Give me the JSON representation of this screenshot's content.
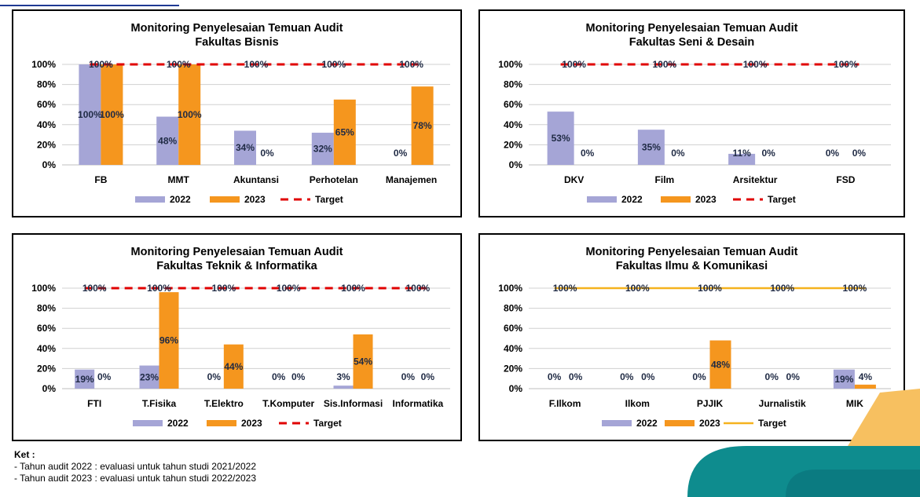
{
  "colors": {
    "s2022": "#a5a5d6",
    "s2023": "#f5961e",
    "target_red": "#e00000",
    "target_yellow": "#f5b21e",
    "grid": "#d0d0d0"
  },
  "charts": [
    {
      "id": "c1",
      "title_line1": "Monitoring Penyelesaian Temuan Audit",
      "title_line2": "Fakultas Bisnis",
      "chart_data": {
        "type": "bar",
        "categories": [
          "FB",
          "MMT",
          "Akuntansi",
          "Perhotelan",
          "Manajemen"
        ],
        "series": [
          {
            "name": "2022",
            "values": [
              100,
              48,
              34,
              32,
              0
            ],
            "labels": [
              "100%",
              "48%",
              "34%",
              "32%",
              "0%"
            ]
          },
          {
            "name": "2023",
            "values": [
              100,
              100,
              0,
              65,
              78
            ],
            "labels": [
              "100%",
              "100%",
              "0%",
              "65%",
              "78%"
            ]
          }
        ],
        "target": {
          "name": "Target",
          "value": 100,
          "labels": [
            "100%",
            "100%",
            "100%",
            "100%",
            "100%"
          ],
          "style": "dashed-red"
        },
        "yticks": [
          "0%",
          "20%",
          "40%",
          "60%",
          "80%",
          "100%"
        ],
        "ylim": [
          0,
          100
        ],
        "legend": "bottom"
      }
    },
    {
      "id": "c2",
      "title_line1": "Monitoring  Penyelesaian Temuan Audit",
      "title_line2": "Fakultas Seni & Desain",
      "chart_data": {
        "type": "bar",
        "categories": [
          "DKV",
          "Film",
          "Arsitektur",
          "FSD"
        ],
        "series": [
          {
            "name": "2022",
            "values": [
              53,
              35,
              11,
              0
            ],
            "labels": [
              "53%",
              "35%",
              "11%",
              "0%"
            ]
          },
          {
            "name": "2023",
            "values": [
              0,
              0,
              0,
              0
            ],
            "labels": [
              "0%",
              "0%",
              "0%",
              "0%"
            ]
          }
        ],
        "target": {
          "name": "Target",
          "value": 100,
          "labels": [
            "100%",
            "100%",
            "100%",
            "100%"
          ],
          "style": "dashed-red"
        },
        "yticks": [
          "0%",
          "20%",
          "40%",
          "60%",
          "80%",
          "100%"
        ],
        "ylim": [
          0,
          100
        ],
        "legend": "bottom"
      }
    },
    {
      "id": "c3",
      "title_line1": "Monitoring Penyelesaian Temuan Audit",
      "title_line2": "Fakultas Teknik & Informatika",
      "chart_data": {
        "type": "bar",
        "categories": [
          "FTI",
          "T.Fisika",
          "T.Elektro",
          "T.Komputer",
          "Sis.Informasi",
          "Informatika"
        ],
        "series": [
          {
            "name": "2022",
            "values": [
              19,
              23,
              0,
              0,
              3,
              0
            ],
            "labels": [
              "19%",
              "23%",
              "0%",
              "0%",
              "3%",
              "0%"
            ]
          },
          {
            "name": "2023",
            "values": [
              0,
              96,
              44,
              0,
              54,
              0
            ],
            "labels": [
              "0%",
              "96%",
              "44%",
              "0%",
              "54%",
              "0%"
            ]
          }
        ],
        "target": {
          "name": "Target",
          "value": 100,
          "labels": [
            "100%",
            "100%",
            "100%",
            "100%",
            "100%",
            "100%"
          ],
          "style": "dashed-red"
        },
        "yticks": [
          "0%",
          "20%",
          "40%",
          "60%",
          "80%",
          "100%"
        ],
        "ylim": [
          0,
          100
        ],
        "legend": "bottom"
      }
    },
    {
      "id": "c4",
      "title_line1": "Monitoring Penyelesaian Temuan Audit",
      "title_line2": "Fakultas Ilmu & Komunikasi",
      "chart_data": {
        "type": "bar",
        "categories": [
          "F.Ilkom",
          "Ilkom",
          "PJJIK",
          "Jurnalistik",
          "MIK"
        ],
        "series": [
          {
            "name": "2022",
            "values": [
              0,
              0,
              0,
              0,
              19
            ],
            "labels": [
              "0%",
              "0%",
              "0%",
              "0%",
              "19%"
            ]
          },
          {
            "name": "2023",
            "values": [
              0,
              0,
              48,
              0,
              4
            ],
            "labels": [
              "0%",
              "0%",
              "48%",
              "0%",
              "4%"
            ]
          }
        ],
        "target": {
          "name": "Target",
          "value": 100,
          "labels": [
            "100%",
            "100%",
            "100%",
            "100%",
            "100%"
          ],
          "style": "solid-yellow"
        },
        "yticks": [
          "0%",
          "20%",
          "40%",
          "60%",
          "80%",
          "100%"
        ],
        "ylim": [
          0,
          100
        ],
        "legend": "bottom"
      }
    }
  ],
  "notes": {
    "heading": "Ket :",
    "line1": "- Tahun audit 2022 : evaluasi untuk tahun studi 2021/2022",
    "line2": "- Tahun audit 2023 : evaluasi untuk tahun studi 2022/2023"
  }
}
